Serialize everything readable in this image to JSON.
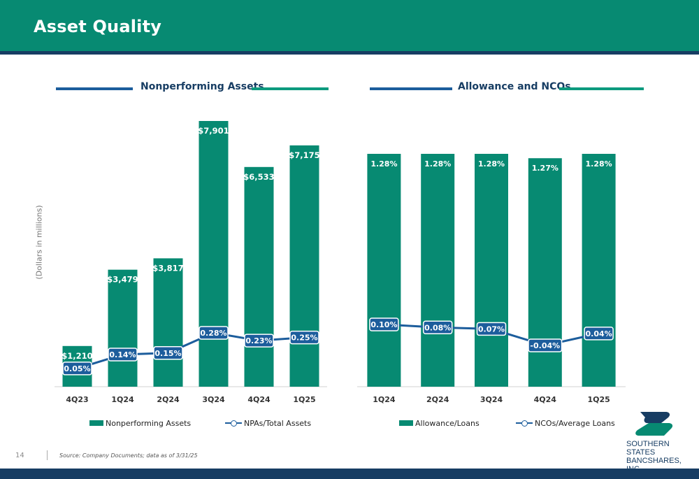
{
  "header": {
    "title": "Asset Quality"
  },
  "left_panel": {
    "heading": "Nonperforming Assets",
    "ylabel": "(Dollars in millions)"
  },
  "right_panel": {
    "heading": "Allowance and NCOs"
  },
  "colors": {
    "header": "#078a72",
    "bar": "#078a72",
    "line": "#1c5d9c",
    "navy": "#173d63"
  },
  "chart_data": [
    {
      "type": "bar",
      "categories": [
        "4Q23",
        "1Q24",
        "2Q24",
        "3Q24",
        "4Q24",
        "1Q25"
      ],
      "series": [
        {
          "name": "Nonperforming Assets",
          "values": [
            1210,
            3479,
            3817,
            7901,
            6533,
            7175
          ],
          "labels": [
            "$1,210",
            "$3,479",
            "$3,817",
            "$7,901",
            "$6,533",
            "$7,175"
          ],
          "kind": "bar"
        },
        {
          "name": "NPAs/Total Assets",
          "values": [
            0.05,
            0.14,
            0.15,
            0.28,
            0.23,
            0.25
          ],
          "labels": [
            "0.05%",
            "0.14%",
            "0.15%",
            "0.28%",
            "0.23%",
            "0.25%"
          ],
          "kind": "line"
        }
      ],
      "ylabel": "(Dollars in millions)",
      "legend": "bottom",
      "grid": false
    },
    {
      "type": "bar",
      "categories": [
        "1Q24",
        "2Q24",
        "3Q24",
        "4Q24",
        "1Q25"
      ],
      "series": [
        {
          "name": "Allowance/Loans",
          "values": [
            1.28,
            1.28,
            1.28,
            1.27,
            1.28
          ],
          "labels": [
            "1.28%",
            "1.28%",
            "1.28%",
            "1.27%",
            "1.28%"
          ],
          "kind": "bar"
        },
        {
          "name": "NCOs/Average Loans",
          "values": [
            0.1,
            0.08,
            0.07,
            -0.04,
            0.04
          ],
          "labels": [
            "0.10%",
            "0.08%",
            "0.07%",
            "-0.04%",
            "0.04%"
          ],
          "kind": "line"
        }
      ],
      "legend": "bottom",
      "grid": false
    }
  ],
  "footer": {
    "page_number": "14",
    "source": "Source: Company Documents; data as of 3/31/25"
  },
  "logo": {
    "line1": "SOUTHERN STATES",
    "line2": "BANCSHARES, INC."
  }
}
